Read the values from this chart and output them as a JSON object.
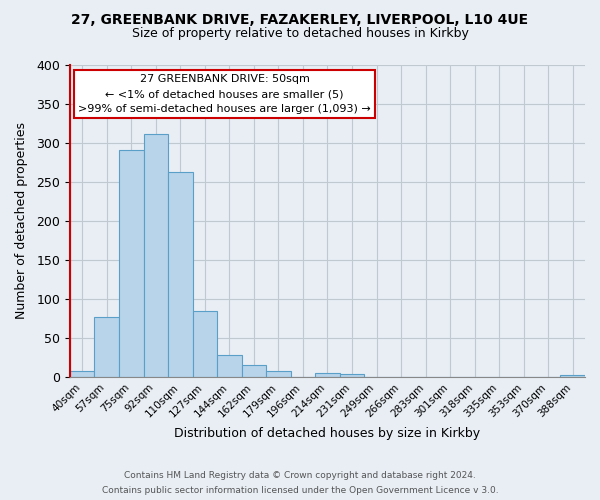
{
  "title": "27, GREENBANK DRIVE, FAZAKERLEY, LIVERPOOL, L10 4UE",
  "subtitle": "Size of property relative to detached houses in Kirkby",
  "xlabel": "Distribution of detached houses by size in Kirkby",
  "ylabel": "Number of detached properties",
  "bin_labels": [
    "40sqm",
    "57sqm",
    "75sqm",
    "92sqm",
    "110sqm",
    "127sqm",
    "144sqm",
    "162sqm",
    "179sqm",
    "196sqm",
    "214sqm",
    "231sqm",
    "249sqm",
    "266sqm",
    "283sqm",
    "301sqm",
    "318sqm",
    "335sqm",
    "353sqm",
    "370sqm",
    "388sqm"
  ],
  "bar_heights": [
    8,
    77,
    291,
    312,
    263,
    85,
    28,
    15,
    8,
    0,
    5,
    4,
    0,
    0,
    0,
    0,
    0,
    0,
    0,
    0,
    3
  ],
  "bar_color": "#b8d4ea",
  "bar_edge_color": "#5a9fc8",
  "highlight_color": "#cc0000",
  "ylim": [
    0,
    400
  ],
  "yticks": [
    0,
    50,
    100,
    150,
    200,
    250,
    300,
    350,
    400
  ],
  "annotation_title": "27 GREENBANK DRIVE: 50sqm",
  "annotation_line1": "← <1% of detached houses are smaller (5)",
  "annotation_line2": ">99% of semi-detached houses are larger (1,093) →",
  "annotation_box_color": "#ffffff",
  "annotation_box_edge": "#cc0000",
  "footer1": "Contains HM Land Registry data © Crown copyright and database right 2024.",
  "footer2": "Contains public sector information licensed under the Open Government Licence v 3.0.",
  "background_color": "#e8eef4",
  "plot_bg_color": "#e8eef4",
  "grid_color": "#c0c8d0"
}
